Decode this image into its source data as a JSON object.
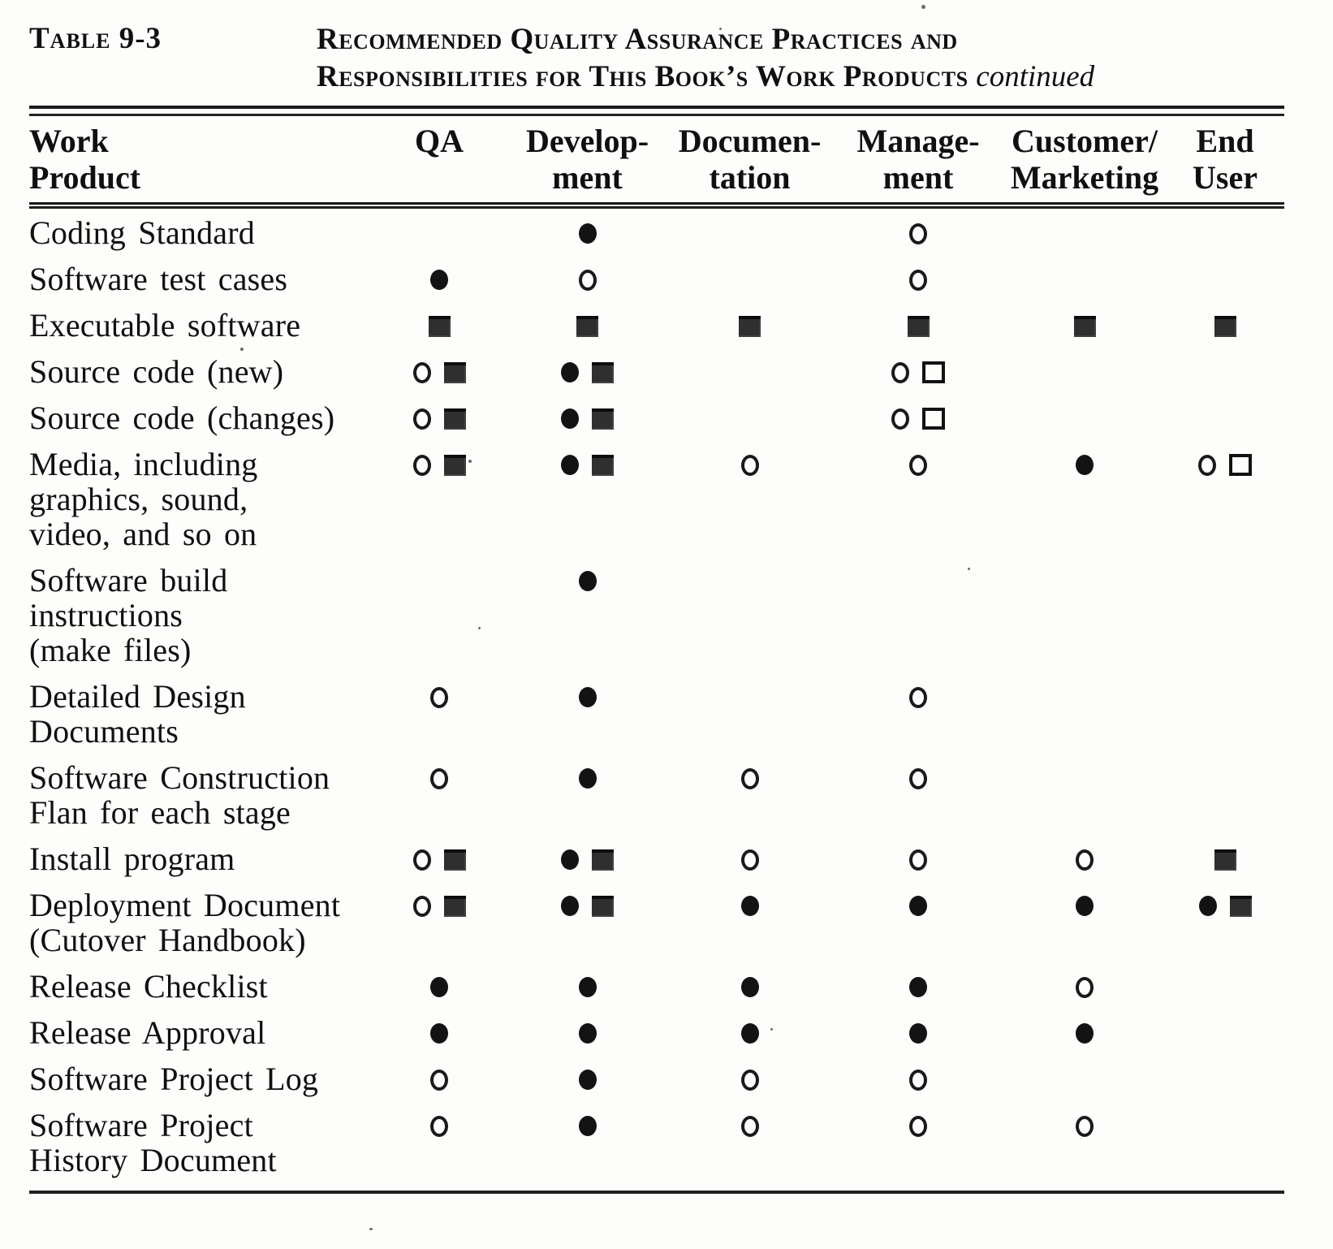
{
  "page": {
    "table_label": "Table 9-3",
    "title": {
      "line1": "Recommended Quality Assurance Practices and",
      "line2": "Responsibilities for This Book’s Work Products",
      "continued": "continued"
    }
  },
  "table": {
    "columns": [
      {
        "id": "work_product",
        "line1": "Work",
        "line2": "Product"
      },
      {
        "id": "qa",
        "line1": "",
        "line2": "QA"
      },
      {
        "id": "development",
        "line1": "Develop-",
        "line2": "ment"
      },
      {
        "id": "documentation",
        "line1": "Documen-",
        "line2": "tation"
      },
      {
        "id": "management",
        "line1": "Manage-",
        "line2": "ment"
      },
      {
        "id": "customer_marketing",
        "line1": "Customer/",
        "line2": "Marketing"
      },
      {
        "id": "end_user",
        "line1": "End",
        "line2": "User"
      }
    ],
    "symbol_key": {
      "filled-circle": "●",
      "open-circle": "○",
      "filled-square": "■",
      "open-square": "□"
    },
    "rows": [
      {
        "label_lines": [
          "Coding Standard"
        ],
        "cells": [
          [],
          [
            "filled-circle"
          ],
          [],
          [
            "open-circle"
          ],
          [],
          []
        ]
      },
      {
        "label_lines": [
          "Software test cases"
        ],
        "cells": [
          [
            "filled-circle"
          ],
          [
            "open-circle"
          ],
          [],
          [
            "open-circle"
          ],
          [],
          []
        ]
      },
      {
        "label_lines": [
          "Executable software"
        ],
        "cells": [
          [
            "filled-square"
          ],
          [
            "filled-square"
          ],
          [
            "filled-square"
          ],
          [
            "filled-square"
          ],
          [
            "filled-square"
          ],
          [
            "filled-square"
          ]
        ]
      },
      {
        "label_lines": [
          "Source code (new)"
        ],
        "cells": [
          [
            "open-circle",
            "filled-square"
          ],
          [
            "filled-circle",
            "filled-square"
          ],
          [],
          [
            "open-circle",
            "open-square"
          ],
          [],
          []
        ]
      },
      {
        "label_lines": [
          "Source code (changes)"
        ],
        "cells": [
          [
            "open-circle",
            "filled-square"
          ],
          [
            "filled-circle",
            "filled-square"
          ],
          [],
          [
            "open-circle",
            "open-square"
          ],
          [],
          []
        ]
      },
      {
        "label_lines": [
          "Media, including",
          "graphics, sound,",
          "video, and so on"
        ],
        "cells": [
          [
            "open-circle",
            "filled-square"
          ],
          [
            "filled-circle",
            "filled-square"
          ],
          [
            "open-circle"
          ],
          [
            "open-circle"
          ],
          [
            "filled-circle"
          ],
          [
            "open-circle",
            "open-square"
          ]
        ]
      },
      {
        "label_lines": [
          "Software build",
          "instructions",
          "(make files)"
        ],
        "cells": [
          [],
          [
            "filled-circle"
          ],
          [],
          [],
          [],
          []
        ]
      },
      {
        "label_lines": [
          "Detailed Design",
          "Documents"
        ],
        "cells": [
          [
            "open-circle"
          ],
          [
            "filled-circle"
          ],
          [],
          [
            "open-circle"
          ],
          [],
          []
        ]
      },
      {
        "label_lines": [
          "Software Construction",
          "Flan for each stage"
        ],
        "cells": [
          [
            "open-circle"
          ],
          [
            "filled-circle"
          ],
          [
            "open-circle"
          ],
          [
            "open-circle"
          ],
          [],
          []
        ]
      },
      {
        "label_lines": [
          "Install program"
        ],
        "cells": [
          [
            "open-circle",
            "filled-square"
          ],
          [
            "filled-circle",
            "filled-square"
          ],
          [
            "open-circle"
          ],
          [
            "open-circle"
          ],
          [
            "open-circle"
          ],
          [
            "filled-square"
          ]
        ]
      },
      {
        "label_lines": [
          "Deployment Document",
          "(Cutover Handbook)"
        ],
        "cells": [
          [
            "open-circle",
            "filled-square"
          ],
          [
            "filled-circle",
            "filled-square"
          ],
          [
            "filled-circle"
          ],
          [
            "filled-circle"
          ],
          [
            "filled-circle"
          ],
          [
            "filled-circle",
            "filled-square"
          ]
        ]
      },
      {
        "label_lines": [
          "Release Checklist"
        ],
        "cells": [
          [
            "filled-circle"
          ],
          [
            "filled-circle"
          ],
          [
            "filled-circle"
          ],
          [
            "filled-circle"
          ],
          [
            "open-circle"
          ],
          []
        ]
      },
      {
        "label_lines": [
          "Release Approval"
        ],
        "cells": [
          [
            "filled-circle"
          ],
          [
            "filled-circle"
          ],
          [
            "filled-circle"
          ],
          [
            "filled-circle"
          ],
          [
            "filled-circle"
          ],
          []
        ]
      },
      {
        "label_lines": [
          "Software Project Log"
        ],
        "cells": [
          [
            "open-circle"
          ],
          [
            "filled-circle"
          ],
          [
            "open-circle"
          ],
          [
            "open-circle"
          ],
          [],
          []
        ]
      },
      {
        "label_lines": [
          "Software Project",
          "History Document"
        ],
        "cells": [
          [
            "open-circle"
          ],
          [
            "filled-circle"
          ],
          [
            "open-circle"
          ],
          [
            "open-circle"
          ],
          [
            "open-circle"
          ],
          []
        ]
      }
    ]
  }
}
